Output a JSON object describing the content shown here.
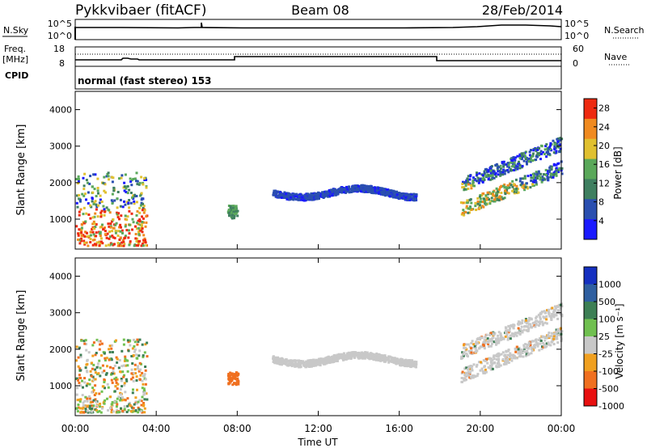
{
  "header": {
    "station": "Pykkvibaer (fitACF)",
    "beam": "Beam 08",
    "date": "28/Feb/2014"
  },
  "noise_panel": {
    "left_label": "N.Sky",
    "right_label": "N.Search",
    "left_ticks": [
      "10^5",
      "10^0"
    ],
    "right_ticks": [
      "10^5",
      "10^0"
    ]
  },
  "freq_panel": {
    "left_label_1": "Freq.",
    "left_label_2": "[MHz]",
    "right_label": "Nave",
    "left_ticks": [
      "18",
      "8"
    ],
    "right_ticks": [
      "60",
      "0"
    ]
  },
  "cpid": {
    "label": "CPID",
    "text": "normal (fast stereo) 153"
  },
  "x_axis": {
    "label": "Time UT",
    "ticks": [
      "00:00",
      "04:00",
      "08:00",
      "12:00",
      "16:00",
      "20:00",
      "00:00"
    ]
  },
  "chart_data": [
    {
      "type": "heatmap",
      "title": "",
      "xlabel": "Time UT",
      "ylabel": "Slant Range [km]",
      "xlim": [
        0,
        24
      ],
      "ylim": [
        180,
        4500
      ],
      "y_ticks": [
        "1000",
        "2000",
        "3000",
        "4000"
      ],
      "colorbar_label": "Power [dB]",
      "colorbar_ticks": [
        "4",
        "8",
        "12",
        "16",
        "20",
        "24",
        "28"
      ],
      "colorbar_range": [
        0,
        30
      ],
      "colors": [
        "#1a1aff",
        "#2a4fb0",
        "#3f7f60",
        "#5aa85a",
        "#e0c030",
        "#f08a20",
        "#ee2a10"
      ],
      "echo_regions": [
        {
          "t": [
            0.0,
            3.5
          ],
          "range": [
            300,
            2300
          ],
          "level": "high"
        },
        {
          "t": [
            7.5,
            8.0
          ],
          "range": [
            1050,
            1400
          ],
          "level": "medium"
        },
        {
          "t": [
            9.7,
            16.8
          ],
          "range": [
            1500,
            1950
          ],
          "level": "low"
        },
        {
          "t": [
            19.0,
            24.0
          ],
          "range": [
            1200,
            3300
          ],
          "level": "medium"
        }
      ]
    },
    {
      "type": "heatmap",
      "title": "",
      "xlabel": "Time UT",
      "ylabel": "Slant Range [km]",
      "xlim": [
        0,
        24
      ],
      "ylim": [
        180,
        4500
      ],
      "y_ticks": [
        "1000",
        "2000",
        "3000",
        "4000"
      ],
      "colorbar_label": "Velocity [m s⁻¹]",
      "colorbar_ticks": [
        "1000",
        "500",
        "100",
        "25",
        "-25",
        "-100",
        "-500",
        "-1000"
      ],
      "colorbar_range": [
        -1200,
        1200
      ],
      "colors": [
        "#1530c0",
        "#2f5fa0",
        "#3d7f55",
        "#70c050",
        "#c8c8c8",
        "#f0a020",
        "#f07020",
        "#e81010"
      ],
      "echo_regions": [
        {
          "t": [
            0.0,
            3.5
          ],
          "range": [
            300,
            2300
          ],
          "level": "mixed"
        },
        {
          "t": [
            7.5,
            8.0
          ],
          "range": [
            1050,
            1400
          ],
          "level": "negative"
        },
        {
          "t": [
            9.7,
            16.8
          ],
          "range": [
            1500,
            1950
          ],
          "level": "near-zero"
        },
        {
          "t": [
            19.0,
            24.0
          ],
          "range": [
            1200,
            3300
          ],
          "level": "near-zero"
        }
      ]
    }
  ]
}
